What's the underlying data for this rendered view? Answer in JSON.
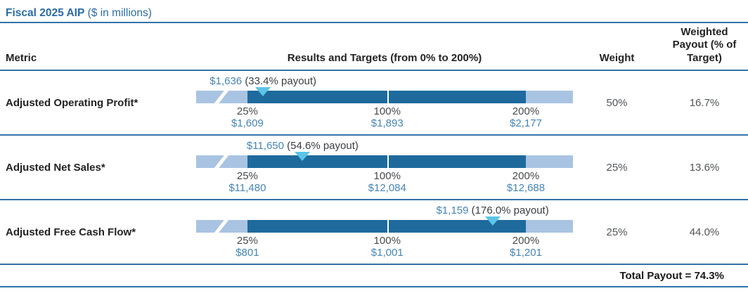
{
  "title": {
    "main": "Fiscal 2025 AIP",
    "suffix": " ($ in millions)"
  },
  "header": {
    "metric": "Metric",
    "results": "Results and Targets (from 0% to 200%)",
    "weight": "Weight",
    "weighted": "Weighted\nPayout (% of\nTarget)"
  },
  "rows": [
    {
      "metric": "Adjusted Operating Profit*",
      "result_value": "$1,636",
      "result_note": " (33.4% payout)",
      "payout_pct": 33.4,
      "ticks": [
        {
          "pct": "25%",
          "value": "$1,609"
        },
        {
          "pct": "100%",
          "value": "$1,893"
        },
        {
          "pct": "200%",
          "value": "$2,177"
        }
      ],
      "weight": "50%",
      "weighted_payout": "16.7%"
    },
    {
      "metric": "Adjusted Net Sales*",
      "result_value": "$11,650",
      "result_note": " (54.6% payout)",
      "payout_pct": 54.6,
      "ticks": [
        {
          "pct": "25%",
          "value": "$11,480"
        },
        {
          "pct": "100%",
          "value": "$12,084"
        },
        {
          "pct": "200%",
          "value": "$12,688"
        }
      ],
      "weight": "25%",
      "weighted_payout": "13.6%"
    },
    {
      "metric": "Adjusted Free Cash Flow*",
      "result_value": "$1,159",
      "result_note": " (176.0% payout)",
      "payout_pct": 176.0,
      "ticks": [
        {
          "pct": "25%",
          "value": "$801"
        },
        {
          "pct": "100%",
          "value": "$1,001"
        },
        {
          "pct": "200%",
          "value": "$1,201"
        }
      ],
      "weight": "25%",
      "weighted_payout": "44.0%"
    }
  ],
  "footer": {
    "total_label": "Total Payout = 74.3%"
  },
  "gauge": {
    "tick_payouts": [
      25,
      100,
      200
    ],
    "tick_positions_pct": [
      13.6,
      50.7,
      87.5
    ]
  },
  "colors": {
    "accent_blue": "#2b6da7",
    "rule_blue": "#3273a9",
    "bar_dark": "#1e6a9d",
    "bar_light": "#a9c4e2",
    "marker_cyan": "#5bc4e7",
    "value_blue": "#4585b6",
    "text_dark": "#232323",
    "text_gray": "#515558"
  },
  "chart_data": {
    "type": "table",
    "title": "Fiscal 2025 AIP ($ in millions)",
    "columns": [
      "Metric",
      "Results and Targets (from 0% to 200%)",
      "Weight",
      "Weighted Payout (% of Target)"
    ],
    "gauge_scale": {
      "min_payout_pct": 0,
      "max_payout_pct": 200,
      "labeled_ticks_pct": [
        25,
        100,
        200
      ]
    },
    "rows": [
      {
        "metric": "Adjusted Operating Profit*",
        "result_millions": 1636,
        "payout_pct": 33.4,
        "threshold_25pct": 1609,
        "target_100pct": 1893,
        "max_200pct": 2177,
        "weight_pct": 50,
        "weighted_payout_pct": 16.7
      },
      {
        "metric": "Adjusted Net Sales*",
        "result_millions": 11650,
        "payout_pct": 54.6,
        "threshold_25pct": 11480,
        "target_100pct": 12084,
        "max_200pct": 12688,
        "weight_pct": 25,
        "weighted_payout_pct": 13.6
      },
      {
        "metric": "Adjusted Free Cash Flow*",
        "result_millions": 1159,
        "payout_pct": 176.0,
        "threshold_25pct": 801,
        "target_100pct": 1001,
        "max_200pct": 1201,
        "weight_pct": 25,
        "weighted_payout_pct": 44.0
      }
    ],
    "total_payout_pct": 74.3
  }
}
